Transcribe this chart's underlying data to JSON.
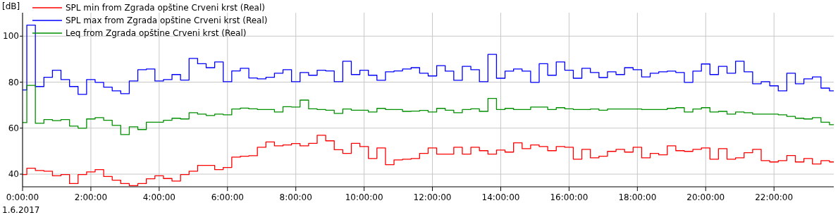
{
  "chart_data": {
    "type": "step",
    "ylabel": "[dB]",
    "annotations": [
      "1.6.2017"
    ],
    "x": [
      0,
      0.125,
      0.375,
      0.625,
      0.875,
      1.125,
      1.375,
      1.625,
      1.875,
      2.125,
      2.375,
      2.625,
      2.875,
      3.125,
      3.375,
      3.625,
      3.875,
      4.125,
      4.375,
      4.625,
      4.875,
      5.125,
      5.375,
      5.625,
      5.875,
      6.125,
      6.375,
      6.625,
      6.875,
      7.125,
      7.375,
      7.625,
      7.875,
      8.125,
      8.375,
      8.625,
      8.875,
      9.125,
      9.375,
      9.625,
      9.875,
      10.125,
      10.375,
      10.625,
      10.875,
      11.125,
      11.375,
      11.625,
      11.875,
      12.125,
      12.375,
      12.625,
      12.875,
      13.125,
      13.375,
      13.625,
      13.875,
      14.125,
      14.375,
      14.625,
      14.875,
      15.125,
      15.375,
      15.625,
      15.875,
      16.125,
      16.375,
      16.625,
      16.875,
      17.125,
      17.375,
      17.625,
      17.875,
      18.125,
      18.375,
      18.625,
      18.875,
      19.125,
      19.375,
      19.625,
      19.875,
      20.125,
      20.375,
      20.625,
      20.875,
      21.125,
      21.375,
      21.625,
      21.875,
      22.125,
      22.375,
      22.625,
      22.875,
      23.125,
      23.375,
      23.625,
      23.75
    ],
    "series": [
      {
        "name": "SPL min from Zgrada opštine Crveni krst (Real)",
        "color": "#ff0000",
        "values": [
          39.8,
          42.6,
          41.6,
          41.3,
          39.3,
          39.8,
          35.9,
          39.8,
          41.0,
          42.0,
          39.0,
          37.4,
          35.9,
          35.0,
          35.9,
          38.0,
          39.3,
          38.1,
          37.0,
          39.8,
          41.3,
          43.8,
          43.8,
          42.0,
          42.9,
          47.4,
          47.8,
          48.0,
          51.7,
          54.0,
          52.3,
          52.7,
          53.3,
          52.3,
          53.4,
          56.9,
          54.5,
          50.6,
          49.0,
          53.4,
          52.0,
          46.8,
          51.4,
          44.1,
          46.2,
          46.5,
          46.8,
          49.0,
          51.4,
          48.7,
          48.7,
          51.7,
          48.7,
          51.7,
          50.2,
          48.7,
          50.5,
          49.6,
          53.6,
          51.1,
          52.7,
          52.0,
          50.2,
          52.0,
          51.7,
          46.5,
          50.8,
          47.1,
          47.8,
          49.9,
          50.8,
          49.6,
          51.7,
          47.1,
          49.0,
          48.4,
          52.3,
          50.2,
          49.9,
          50.8,
          51.4,
          46.5,
          51.1,
          46.5,
          47.1,
          49.3,
          50.8,
          45.9,
          45.3,
          45.9,
          48.1,
          45.3,
          46.8,
          44.4,
          45.9,
          45.3,
          45.3
        ]
      },
      {
        "name": "SPL max from Zgrada opštine Crveni krst (Real)",
        "color": "#0000ff",
        "values": [
          76.6,
          104.8,
          78.1,
          82.1,
          85.2,
          81.1,
          78.1,
          74.7,
          81.1,
          79.9,
          77.8,
          76.2,
          75.0,
          80.5,
          85.4,
          85.7,
          80.5,
          81.1,
          83.3,
          80.9,
          90.3,
          88.0,
          86.3,
          88.8,
          80.2,
          84.9,
          86.0,
          81.8,
          81.4,
          82.1,
          83.9,
          85.4,
          80.2,
          84.2,
          83.0,
          85.2,
          84.9,
          80.2,
          89.1,
          83.3,
          85.2,
          83.0,
          80.8,
          84.5,
          84.9,
          85.7,
          86.3,
          83.9,
          82.7,
          87.2,
          84.8,
          80.8,
          86.9,
          85.4,
          80.2,
          92.1,
          81.7,
          84.8,
          85.7,
          84.8,
          79.9,
          88.0,
          83.0,
          88.8,
          85.2,
          81.7,
          86.0,
          84.2,
          82.0,
          84.5,
          83.3,
          86.3,
          85.4,
          82.3,
          83.9,
          84.5,
          84.8,
          84.2,
          79.9,
          84.8,
          87.9,
          83.3,
          86.9,
          83.9,
          89.1,
          84.5,
          79.3,
          80.2,
          78.4,
          76.2,
          83.9,
          79.3,
          81.4,
          82.3,
          77.4,
          76.2,
          76.2
        ]
      },
      {
        "name": "Leq from Zgrada opštine Crveni krst (Real)",
        "color": "#009000",
        "values": [
          62.4,
          78.6,
          62.1,
          63.7,
          63.3,
          63.7,
          60.9,
          60.0,
          64.0,
          64.6,
          63.4,
          61.2,
          57.2,
          60.6,
          59.4,
          62.6,
          62.6,
          63.4,
          64.3,
          64.0,
          66.7,
          66.1,
          65.5,
          66.1,
          65.8,
          68.3,
          68.7,
          68.4,
          68.1,
          68.1,
          67.0,
          69.3,
          69.2,
          72.2,
          68.4,
          68.1,
          67.8,
          66.4,
          68.3,
          67.8,
          67.8,
          67.0,
          68.6,
          68.1,
          68.1,
          67.3,
          67.4,
          67.7,
          67.0,
          68.6,
          67.8,
          66.7,
          68.1,
          68.4,
          67.3,
          72.9,
          68.1,
          68.6,
          68.1,
          68.1,
          69.2,
          69.2,
          68.1,
          68.9,
          68.4,
          68.1,
          68.1,
          68.3,
          67.8,
          68.3,
          68.3,
          68.3,
          68.3,
          68.1,
          68.1,
          68.1,
          68.6,
          68.9,
          67.0,
          68.3,
          68.9,
          67.0,
          67.3,
          66.1,
          67.0,
          66.7,
          66.1,
          66.1,
          66.1,
          65.8,
          65.1,
          64.3,
          64.0,
          64.6,
          62.6,
          61.5,
          61.5
        ]
      }
    ],
    "xlim": [
      0,
      23.75
    ],
    "ylim": [
      34.5,
      110.2
    ],
    "xticks": [
      {
        "value": 0,
        "label": "0:00:00"
      },
      {
        "value": 2,
        "label": "2:00:00"
      },
      {
        "value": 4,
        "label": "4:00:00"
      },
      {
        "value": 6,
        "label": "6:00:00"
      },
      {
        "value": 8,
        "label": "8:00:00"
      },
      {
        "value": 10,
        "label": "10:00:00"
      },
      {
        "value": 12,
        "label": "12:00:00"
      },
      {
        "value": 14,
        "label": "14:00:00"
      },
      {
        "value": 16,
        "label": "16:00:00"
      },
      {
        "value": 18,
        "label": "18:00:00"
      },
      {
        "value": 20,
        "label": "20:00:00"
      },
      {
        "value": 22,
        "label": "22:00:00"
      }
    ],
    "yticks": [
      40,
      60,
      80,
      100
    ],
    "grid": true,
    "legend": "top left"
  }
}
